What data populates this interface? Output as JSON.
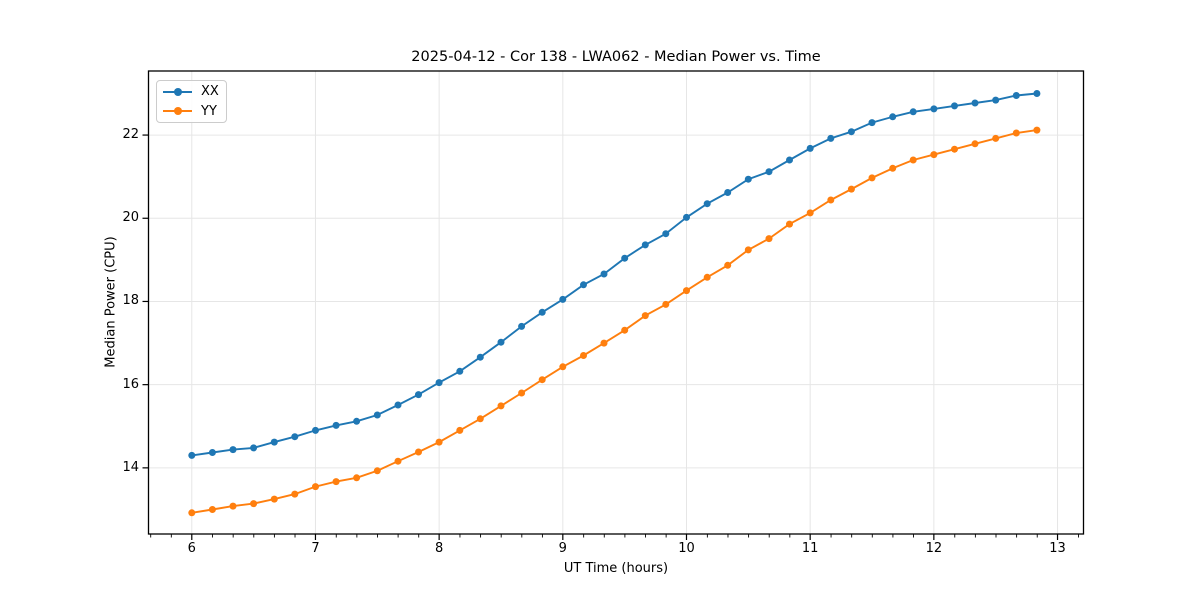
{
  "chart_data": {
    "type": "line",
    "title": "2025-04-12 - Cor 138 - LWA062 - Median Power vs. Time",
    "xlabel": "UT Time (hours)",
    "ylabel": "Median Power (CPU)",
    "xlim": [
      5.65,
      13.21
    ],
    "ylim": [
      12.41,
      23.54
    ],
    "x_ticks": [
      6,
      7,
      8,
      9,
      10,
      11,
      12,
      13
    ],
    "y_ticks": [
      14,
      16,
      18,
      20,
      22
    ],
    "x_minor_step": 0.1667,
    "grid": "major",
    "grid_color": "#e6e6e6",
    "spine_color": "#000000",
    "background": "#ffffff",
    "legend_position": "upper-left",
    "x": [
      6.0,
      6.167,
      6.333,
      6.5,
      6.667,
      6.833,
      7.0,
      7.167,
      7.333,
      7.5,
      7.667,
      7.833,
      8.0,
      8.167,
      8.333,
      8.5,
      8.667,
      8.833,
      9.0,
      9.167,
      9.333,
      9.5,
      9.667,
      9.833,
      10.0,
      10.167,
      10.333,
      10.5,
      10.667,
      10.833,
      11.0,
      11.167,
      11.333,
      11.5,
      11.667,
      11.833,
      12.0,
      12.167,
      12.333,
      12.5,
      12.667,
      12.833
    ],
    "series": [
      {
        "name": "XX",
        "color": "#1f77b4",
        "values": [
          14.3,
          14.37,
          14.44,
          14.48,
          14.62,
          14.75,
          14.9,
          15.02,
          15.12,
          15.27,
          15.51,
          15.76,
          16.05,
          16.32,
          16.66,
          17.02,
          17.4,
          17.74,
          18.05,
          18.4,
          18.66,
          19.04,
          19.36,
          19.63,
          20.02,
          20.35,
          20.62,
          20.94,
          21.12,
          21.4,
          21.68,
          21.92,
          22.08,
          22.3,
          22.44,
          22.56,
          22.63,
          22.7,
          22.77,
          22.84,
          22.95,
          23.0
        ]
      },
      {
        "name": "YY",
        "color": "#ff7f0e",
        "values": [
          12.92,
          13.0,
          13.08,
          13.14,
          13.25,
          13.37,
          13.55,
          13.67,
          13.76,
          13.93,
          14.16,
          14.38,
          14.62,
          14.9,
          15.18,
          15.49,
          15.8,
          16.12,
          16.43,
          16.7,
          17.0,
          17.31,
          17.66,
          17.93,
          18.26,
          18.58,
          18.87,
          19.24,
          19.51,
          19.86,
          20.13,
          20.44,
          20.7,
          20.97,
          21.2,
          21.4,
          21.53,
          21.66,
          21.79,
          21.92,
          22.05,
          22.12
        ]
      }
    ]
  }
}
